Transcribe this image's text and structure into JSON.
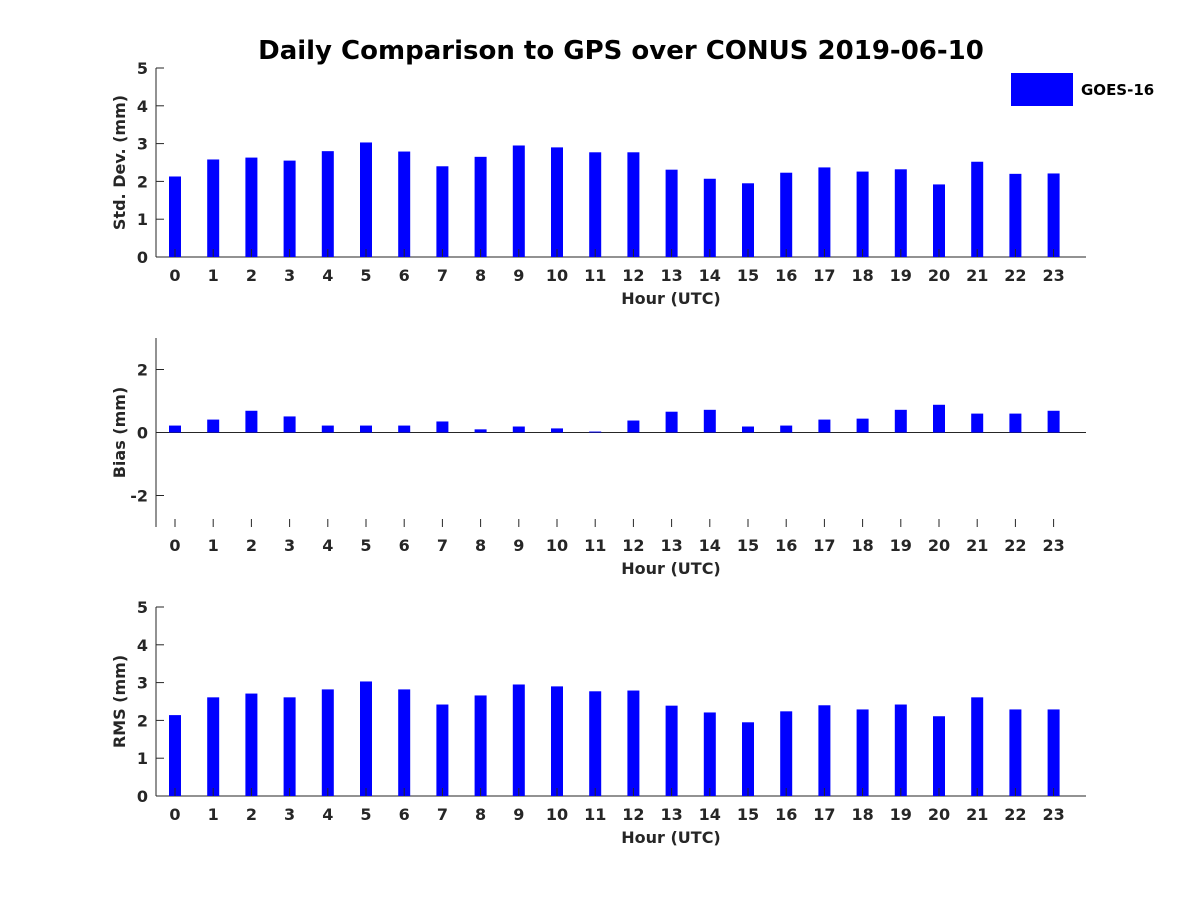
{
  "chart_data": {
    "title": "Daily Comparison to GPS over CONUS 2019-06-10",
    "legend": {
      "label": "GOES-16",
      "color": "#0000ff",
      "placement": "top-right"
    },
    "panels": [
      {
        "type": "bar",
        "ylabel": "Std. Dev. (mm)",
        "xlabel": "Hour (UTC)",
        "ylim": [
          0,
          5
        ],
        "yticks": [
          0,
          1,
          2,
          3,
          4,
          5
        ],
        "ytick_labels": [
          "0",
          "1",
          "2",
          "3",
          "4",
          "5"
        ],
        "categories": [
          "0",
          "1",
          "2",
          "3",
          "4",
          "5",
          "6",
          "7",
          "8",
          "9",
          "10",
          "11",
          "12",
          "13",
          "14",
          "15",
          "16",
          "17",
          "18",
          "19",
          "20",
          "21",
          "22",
          "23"
        ],
        "values": [
          2.13,
          2.58,
          2.63,
          2.55,
          2.8,
          3.03,
          2.79,
          2.4,
          2.65,
          2.95,
          2.9,
          2.77,
          2.77,
          2.31,
          2.07,
          1.95,
          2.23,
          2.37,
          2.26,
          2.32,
          1.92,
          2.52,
          2.2,
          2.21
        ]
      },
      {
        "type": "bar",
        "ylabel": "Bias (mm)",
        "xlabel": "Hour (UTC)",
        "ylim": [
          -3,
          3
        ],
        "yticks": [
          -2,
          0,
          2
        ],
        "ytick_labels": [
          "-2",
          "0",
          "2"
        ],
        "categories": [
          "0",
          "1",
          "2",
          "3",
          "4",
          "5",
          "6",
          "7",
          "8",
          "9",
          "10",
          "11",
          "12",
          "13",
          "14",
          "15",
          "16",
          "17",
          "18",
          "19",
          "20",
          "21",
          "22",
          "23"
        ],
        "values": [
          0.22,
          0.41,
          0.69,
          0.51,
          0.22,
          0.22,
          0.22,
          0.35,
          0.1,
          0.19,
          0.13,
          0.03,
          0.38,
          0.66,
          0.72,
          0.19,
          0.22,
          0.41,
          0.44,
          0.72,
          0.88,
          0.6,
          0.6,
          0.69
        ]
      },
      {
        "type": "bar",
        "ylabel": "RMS (mm)",
        "xlabel": "Hour (UTC)",
        "ylim": [
          0,
          5
        ],
        "yticks": [
          0,
          1,
          2,
          3,
          4,
          5
        ],
        "ytick_labels": [
          "0",
          "1",
          "2",
          "3",
          "4",
          "5"
        ],
        "categories": [
          "0",
          "1",
          "2",
          "3",
          "4",
          "5",
          "6",
          "7",
          "8",
          "9",
          "10",
          "11",
          "12",
          "13",
          "14",
          "15",
          "16",
          "17",
          "18",
          "19",
          "20",
          "21",
          "22",
          "23"
        ],
        "values": [
          2.14,
          2.61,
          2.71,
          2.61,
          2.82,
          3.03,
          2.82,
          2.42,
          2.66,
          2.95,
          2.9,
          2.77,
          2.79,
          2.39,
          2.21,
          1.95,
          2.24,
          2.4,
          2.29,
          2.42,
          2.11,
          2.61,
          2.29,
          2.29
        ]
      }
    ]
  }
}
